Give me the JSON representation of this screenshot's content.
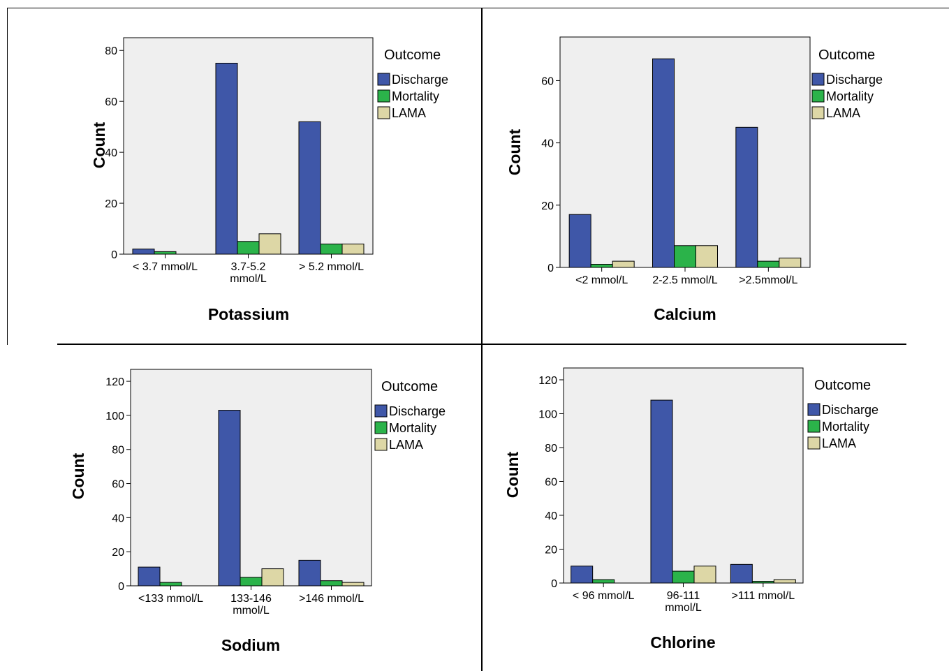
{
  "chart_data": [
    {
      "type": "bar",
      "categories": [
        "< 3.7 mmol/L",
        "3.7-5.2 mmol/L",
        "> 5.2 mmol/L"
      ],
      "category_lines": [
        [
          "< 3.7 mmol/L"
        ],
        [
          "3.7-5.2",
          "mmol/L"
        ],
        [
          "> 5.2 mmol/L"
        ]
      ],
      "series": [
        {
          "name": "Discharge",
          "color": "#3f57a8",
          "values": [
            2,
            75,
            52
          ]
        },
        {
          "name": "Mortality",
          "color": "#2bb34a",
          "values": [
            1,
            5,
            4
          ]
        },
        {
          "name": "LAMA",
          "color": "#ddd7a6",
          "values": [
            0,
            8,
            4
          ]
        }
      ],
      "xlabel": "Potassium",
      "ylabel": "Count",
      "ylim": [
        0,
        85
      ],
      "yticks": [
        0,
        20,
        40,
        60,
        80
      ],
      "legend_title": "Outcome",
      "legend_position": "right"
    },
    {
      "type": "bar",
      "categories": [
        "<2 mmol/L",
        "2-2.5 mmol/L",
        ">2.5mmol/L"
      ],
      "category_lines": [
        [
          "<2 mmol/L"
        ],
        [
          "2-2.5 mmol/L"
        ],
        [
          ">2.5mmol/L"
        ]
      ],
      "series": [
        {
          "name": "Discharge",
          "color": "#3f57a8",
          "values": [
            17,
            67,
            45
          ]
        },
        {
          "name": "Mortality",
          "color": "#2bb34a",
          "values": [
            1,
            7,
            2
          ]
        },
        {
          "name": "LAMA",
          "color": "#ddd7a6",
          "values": [
            2,
            7,
            3
          ]
        }
      ],
      "xlabel": "Calcium",
      "ylabel": "Count",
      "ylim": [
        0,
        74
      ],
      "yticks": [
        0,
        20,
        40,
        60
      ],
      "legend_title": "Outcome",
      "legend_position": "right"
    },
    {
      "type": "bar",
      "categories": [
        "<133 mmol/L",
        "133-146 mmol/L",
        ">146 mmol/L"
      ],
      "category_lines": [
        [
          "<133 mmol/L"
        ],
        [
          "133-146",
          "mmol/L"
        ],
        [
          ">146 mmol/L"
        ]
      ],
      "series": [
        {
          "name": "Discharge",
          "color": "#3f57a8",
          "values": [
            11,
            103,
            15
          ]
        },
        {
          "name": "Mortality",
          "color": "#2bb34a",
          "values": [
            2,
            5,
            3
          ]
        },
        {
          "name": "LAMA",
          "color": "#ddd7a6",
          "values": [
            0,
            10,
            2
          ]
        }
      ],
      "xlabel": "Sodium",
      "ylabel": "Count",
      "ylim": [
        0,
        127
      ],
      "yticks": [
        0,
        20,
        40,
        60,
        80,
        100,
        120
      ],
      "legend_title": "Outcome",
      "legend_position": "right"
    },
    {
      "type": "bar",
      "categories": [
        "< 96 mmol/L",
        "96-111 mmol/L",
        ">111 mmol/L"
      ],
      "category_lines": [
        [
          "< 96 mmol/L"
        ],
        [
          "96-111",
          "mmol/L"
        ],
        [
          ">111 mmol/L"
        ]
      ],
      "series": [
        {
          "name": "Discharge",
          "color": "#3f57a8",
          "values": [
            10,
            108,
            11
          ]
        },
        {
          "name": "Mortality",
          "color": "#2bb34a",
          "values": [
            2,
            7,
            1
          ]
        },
        {
          "name": "LAMA",
          "color": "#ddd7a6",
          "values": [
            0,
            10,
            2
          ]
        }
      ],
      "xlabel": "Chlorine",
      "ylabel": "Count",
      "ylim": [
        0,
        127
      ],
      "yticks": [
        0,
        20,
        40,
        60,
        80,
        100,
        120
      ],
      "legend_title": "Outcome",
      "legend_position": "right"
    }
  ]
}
